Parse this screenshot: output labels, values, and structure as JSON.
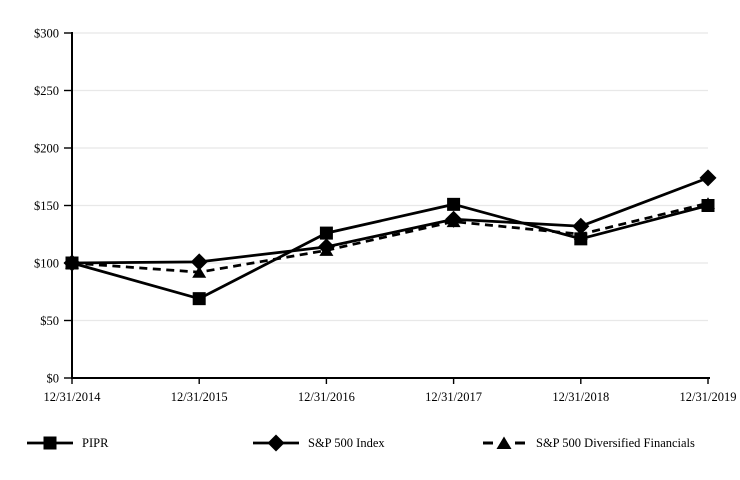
{
  "figure": {
    "background": "#ffffff",
    "axis_color": "#000000",
    "gridline_color": "#e8e8e8",
    "text_color": "#000000"
  },
  "chart_data": {
    "type": "line",
    "title": "",
    "xlabel": "",
    "ylabel": "",
    "categories": [
      "12/31/2014",
      "12/31/2015",
      "12/31/2016",
      "12/31/2017",
      "12/31/2018",
      "12/31/2019"
    ],
    "series": [
      {
        "name": "PIPR",
        "marker": "square",
        "line_style": "solid",
        "color": "#000000",
        "values": [
          100,
          69,
          126,
          151,
          121,
          150
        ]
      },
      {
        "name": "S&P 500 Index",
        "marker": "diamond",
        "line_style": "solid",
        "color": "#000000",
        "values": [
          100,
          101,
          114,
          138,
          132,
          174
        ]
      },
      {
        "name": "S&P 500 Diversified Financials",
        "marker": "triangle",
        "line_style": "dashed",
        "color": "#000000",
        "values": [
          100,
          92,
          111,
          136,
          125,
          152
        ]
      }
    ],
    "ylim": [
      0,
      300
    ],
    "ytick_step": 50,
    "ytick_labels": [
      "$0",
      "$50",
      "$100",
      "$150",
      "$200",
      "$250",
      "$300"
    ],
    "grid": "horizontal",
    "legend_position": "bottom"
  },
  "legend": {
    "items": [
      {
        "label": "PIPR"
      },
      {
        "label": "S&P 500 Index"
      },
      {
        "label": "S&P 500 Diversified Financials"
      }
    ]
  }
}
